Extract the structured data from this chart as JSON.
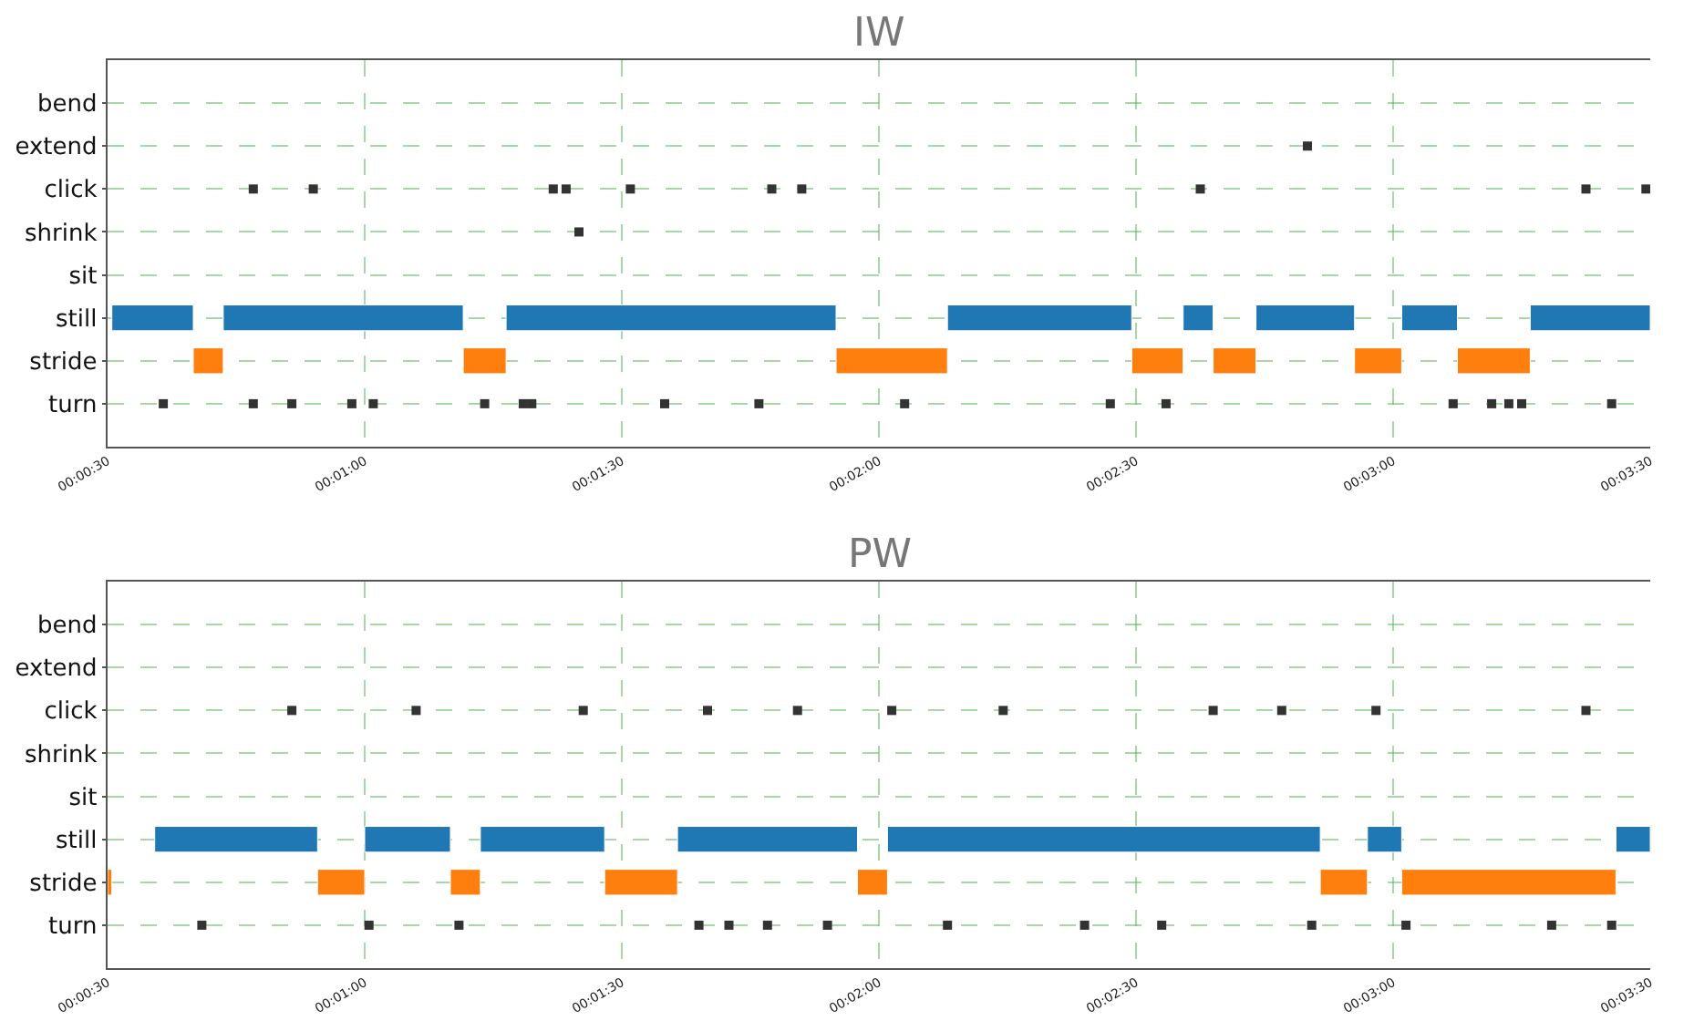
{
  "chart_data": [
    {
      "type": "bar",
      "title": "IW",
      "orientation": "horizontal",
      "marker": "square",
      "categories": [
        "bend",
        "extend",
        "click",
        "shrink",
        "sit",
        "still",
        "stride",
        "turn"
      ],
      "xlim": [
        30,
        210
      ],
      "xticks": [
        {
          "value": 30,
          "label": "00:00:30"
        },
        {
          "value": 60,
          "label": "00:01:00"
        },
        {
          "value": 90,
          "label": "00:01:30"
        },
        {
          "value": 120,
          "label": "00:02:00"
        },
        {
          "value": 150,
          "label": "00:02:30"
        },
        {
          "value": 180,
          "label": "00:03:00"
        },
        {
          "value": 210,
          "label": "00:03:30"
        }
      ],
      "grid": true,
      "series": [
        {
          "colors": [
            null,
            null,
            null,
            null,
            null,
            "#1f77b4",
            "#ff7f0e",
            null
          ],
          "base": [
            null,
            null,
            null,
            null,
            null,
            30.5,
            40,
            null
          ],
          "values": [
            null,
            null,
            null,
            null,
            null,
            9.5,
            3.5,
            null
          ]
        },
        {
          "colors": [
            null,
            null,
            null,
            null,
            null,
            "#1f77b4",
            "#ff7f0e",
            null
          ],
          "base": [
            null,
            null,
            null,
            null,
            null,
            43.5,
            71.5,
            null
          ],
          "values": [
            null,
            null,
            null,
            null,
            null,
            28,
            5,
            null
          ]
        },
        {
          "colors": [
            null,
            null,
            null,
            null,
            null,
            "#1f77b4",
            "#ff7f0e",
            null
          ],
          "base": [
            null,
            null,
            null,
            null,
            null,
            76.5,
            115,
            null
          ],
          "values": [
            null,
            null,
            null,
            null,
            null,
            38.5,
            13,
            null
          ]
        },
        {
          "colors": [
            null,
            null,
            null,
            null,
            null,
            "#1f77b4",
            "#ff7f0e",
            null
          ],
          "base": [
            null,
            null,
            null,
            null,
            null,
            128,
            149.5,
            null
          ],
          "values": [
            null,
            null,
            null,
            null,
            null,
            21.5,
            6,
            null
          ]
        },
        {
          "colors": [
            null,
            null,
            null,
            null,
            null,
            "#1f77b4",
            "#ff7f0e",
            null
          ],
          "base": [
            null,
            null,
            null,
            null,
            null,
            155.5,
            159,
            null
          ],
          "values": [
            null,
            null,
            null,
            null,
            null,
            3.5,
            5,
            null
          ]
        },
        {
          "colors": [
            null,
            null,
            null,
            null,
            null,
            "#1f77b4",
            "#ff7f0e",
            null
          ],
          "base": [
            null,
            null,
            null,
            null,
            null,
            164,
            175.5,
            null
          ],
          "values": [
            null,
            null,
            null,
            null,
            null,
            11.5,
            5.5,
            null
          ]
        },
        {
          "colors": [
            null,
            null,
            null,
            null,
            null,
            "#1f77b4",
            "#ff7f0e",
            null
          ],
          "base": [
            null,
            null,
            null,
            null,
            null,
            181,
            187.5,
            null
          ],
          "values": [
            null,
            null,
            null,
            null,
            null,
            6.5,
            8.5,
            null
          ]
        },
        {
          "colors": [
            null,
            null,
            null,
            null,
            null,
            "#1f77b4",
            null,
            null
          ],
          "base": [
            null,
            null,
            null,
            null,
            null,
            196,
            null,
            null
          ],
          "values": [
            null,
            null,
            null,
            null,
            null,
            14,
            null,
            null
          ]
        },
        {
          "type": "scatter",
          "color": "#333333",
          "values": [
            null,
            170,
            47,
            85,
            null,
            null,
            null,
            36.5
          ]
        },
        {
          "type": "scatter",
          "color": "#333333",
          "values": [
            null,
            null,
            54,
            null,
            null,
            null,
            null,
            47
          ]
        },
        {
          "type": "scatter",
          "color": "#333333",
          "values": [
            null,
            null,
            82,
            null,
            null,
            null,
            null,
            51.5
          ]
        },
        {
          "type": "scatter",
          "color": "#333333",
          "values": [
            null,
            null,
            83.5,
            null,
            null,
            null,
            null,
            58.5
          ]
        },
        {
          "type": "scatter",
          "color": "#333333",
          "values": [
            null,
            null,
            91,
            null,
            null,
            null,
            null,
            61
          ]
        },
        {
          "type": "scatter",
          "color": "#333333",
          "values": [
            null,
            null,
            107.5,
            null,
            null,
            null,
            null,
            74
          ]
        },
        {
          "type": "scatter",
          "color": "#333333",
          "values": [
            null,
            null,
            111,
            null,
            null,
            null,
            null,
            78.5
          ]
        },
        {
          "type": "scatter",
          "color": "#333333",
          "values": [
            null,
            null,
            157.5,
            null,
            null,
            null,
            null,
            79.5
          ]
        },
        {
          "type": "scatter",
          "color": "#333333",
          "values": [
            null,
            null,
            202.5,
            null,
            null,
            null,
            null,
            95
          ]
        },
        {
          "type": "scatter",
          "color": "#333333",
          "values": [
            null,
            null,
            209.5,
            null,
            null,
            null,
            null,
            106
          ]
        },
        {
          "type": "scatter",
          "color": "#333333",
          "values": [
            null,
            null,
            null,
            null,
            null,
            null,
            null,
            123
          ]
        },
        {
          "type": "scatter",
          "color": "#333333",
          "values": [
            null,
            null,
            null,
            null,
            null,
            null,
            null,
            147
          ]
        },
        {
          "type": "scatter",
          "color": "#333333",
          "values": [
            null,
            null,
            null,
            null,
            null,
            null,
            null,
            153.5
          ]
        },
        {
          "type": "scatter",
          "color": "#333333",
          "values": [
            null,
            null,
            null,
            null,
            null,
            null,
            null,
            187
          ]
        },
        {
          "type": "scatter",
          "color": "#333333",
          "values": [
            null,
            null,
            null,
            null,
            null,
            null,
            null,
            191.5
          ]
        },
        {
          "type": "scatter",
          "color": "#333333",
          "values": [
            null,
            null,
            null,
            null,
            null,
            null,
            null,
            193.5
          ]
        },
        {
          "type": "scatter",
          "color": "#333333",
          "values": [
            null,
            null,
            null,
            null,
            null,
            null,
            null,
            195
          ]
        },
        {
          "type": "scatter",
          "color": "#333333",
          "values": [
            null,
            null,
            null,
            null,
            null,
            null,
            null,
            205.5
          ]
        }
      ]
    },
    {
      "type": "bar",
      "title": "PW",
      "orientation": "horizontal",
      "marker": "square",
      "categories": [
        "bend",
        "extend",
        "click",
        "shrink",
        "sit",
        "still",
        "stride",
        "turn"
      ],
      "xlim": [
        30,
        210
      ],
      "xticks": [
        {
          "value": 30,
          "label": "00:00:30"
        },
        {
          "value": 60,
          "label": "00:01:00"
        },
        {
          "value": 90,
          "label": "00:01:30"
        },
        {
          "value": 120,
          "label": "00:02:00"
        },
        {
          "value": 150,
          "label": "00:02:30"
        },
        {
          "value": 180,
          "label": "00:03:00"
        },
        {
          "value": 210,
          "label": "00:03:30"
        }
      ],
      "grid": true,
      "series": [
        {
          "colors": [
            null,
            null,
            null,
            null,
            null,
            "#1f77b4",
            "#ff7f0e",
            null
          ],
          "base": [
            null,
            null,
            null,
            null,
            null,
            35.5,
            30,
            null
          ],
          "values": [
            null,
            null,
            null,
            null,
            null,
            19,
            0.5,
            null
          ]
        },
        {
          "colors": [
            null,
            null,
            null,
            null,
            null,
            "#1f77b4",
            "#ff7f0e",
            null
          ],
          "base": [
            null,
            null,
            null,
            null,
            null,
            60,
            54.5,
            null
          ],
          "values": [
            null,
            null,
            null,
            null,
            null,
            10,
            5.5,
            null
          ]
        },
        {
          "colors": [
            null,
            null,
            null,
            null,
            null,
            "#1f77b4",
            "#ff7f0e",
            null
          ],
          "base": [
            null,
            null,
            null,
            null,
            null,
            73.5,
            70,
            null
          ],
          "values": [
            null,
            null,
            null,
            null,
            null,
            14.5,
            3.5,
            null
          ]
        },
        {
          "colors": [
            null,
            null,
            null,
            null,
            null,
            "#1f77b4",
            "#ff7f0e",
            null
          ],
          "base": [
            null,
            null,
            null,
            null,
            null,
            96.5,
            88,
            null
          ],
          "values": [
            null,
            null,
            null,
            null,
            null,
            21,
            8.5,
            null
          ]
        },
        {
          "colors": [
            null,
            null,
            null,
            null,
            null,
            "#1f77b4",
            "#ff7f0e",
            null
          ],
          "base": [
            null,
            null,
            null,
            null,
            null,
            121,
            117.5,
            null
          ],
          "values": [
            null,
            null,
            null,
            null,
            null,
            50.5,
            3.5,
            null
          ]
        },
        {
          "colors": [
            null,
            null,
            null,
            null,
            null,
            "#1f77b4",
            "#ff7f0e",
            null
          ],
          "base": [
            null,
            null,
            null,
            null,
            null,
            177,
            171.5,
            null
          ],
          "values": [
            null,
            null,
            null,
            null,
            null,
            4,
            5.5,
            null
          ]
        },
        {
          "colors": [
            null,
            null,
            null,
            null,
            null,
            "#1f77b4",
            "#ff7f0e",
            null
          ],
          "base": [
            null,
            null,
            null,
            null,
            null,
            206,
            181,
            null
          ],
          "values": [
            null,
            null,
            null,
            null,
            null,
            4,
            25,
            null
          ]
        },
        {
          "type": "scatter",
          "color": "#333333",
          "values": [
            null,
            null,
            51.5,
            null,
            null,
            null,
            null,
            41
          ]
        },
        {
          "type": "scatter",
          "color": "#333333",
          "values": [
            null,
            null,
            66,
            null,
            null,
            null,
            null,
            60.5
          ]
        },
        {
          "type": "scatter",
          "color": "#333333",
          "values": [
            null,
            null,
            85.5,
            null,
            null,
            null,
            null,
            71
          ]
        },
        {
          "type": "scatter",
          "color": "#333333",
          "values": [
            null,
            null,
            100,
            null,
            null,
            null,
            null,
            99
          ]
        },
        {
          "type": "scatter",
          "color": "#333333",
          "values": [
            null,
            null,
            110.5,
            null,
            null,
            null,
            null,
            102.5
          ]
        },
        {
          "type": "scatter",
          "color": "#333333",
          "values": [
            null,
            null,
            121.5,
            null,
            null,
            null,
            null,
            107
          ]
        },
        {
          "type": "scatter",
          "color": "#333333",
          "values": [
            null,
            null,
            134.5,
            null,
            null,
            null,
            null,
            114
          ]
        },
        {
          "type": "scatter",
          "color": "#333333",
          "values": [
            null,
            null,
            159,
            null,
            null,
            null,
            null,
            128
          ]
        },
        {
          "type": "scatter",
          "color": "#333333",
          "values": [
            null,
            null,
            167,
            null,
            null,
            null,
            null,
            144
          ]
        },
        {
          "type": "scatter",
          "color": "#333333",
          "values": [
            null,
            null,
            178,
            null,
            null,
            null,
            null,
            153
          ]
        },
        {
          "type": "scatter",
          "color": "#333333",
          "values": [
            null,
            null,
            202.5,
            null,
            null,
            null,
            null,
            170.5
          ]
        },
        {
          "type": "scatter",
          "color": "#333333",
          "values": [
            null,
            null,
            null,
            null,
            null,
            null,
            null,
            181.5
          ]
        },
        {
          "type": "scatter",
          "color": "#333333",
          "values": [
            null,
            null,
            null,
            null,
            null,
            null,
            null,
            198.5
          ]
        },
        {
          "type": "scatter",
          "color": "#333333",
          "values": [
            null,
            null,
            null,
            null,
            null,
            null,
            null,
            205.5
          ]
        }
      ]
    }
  ]
}
